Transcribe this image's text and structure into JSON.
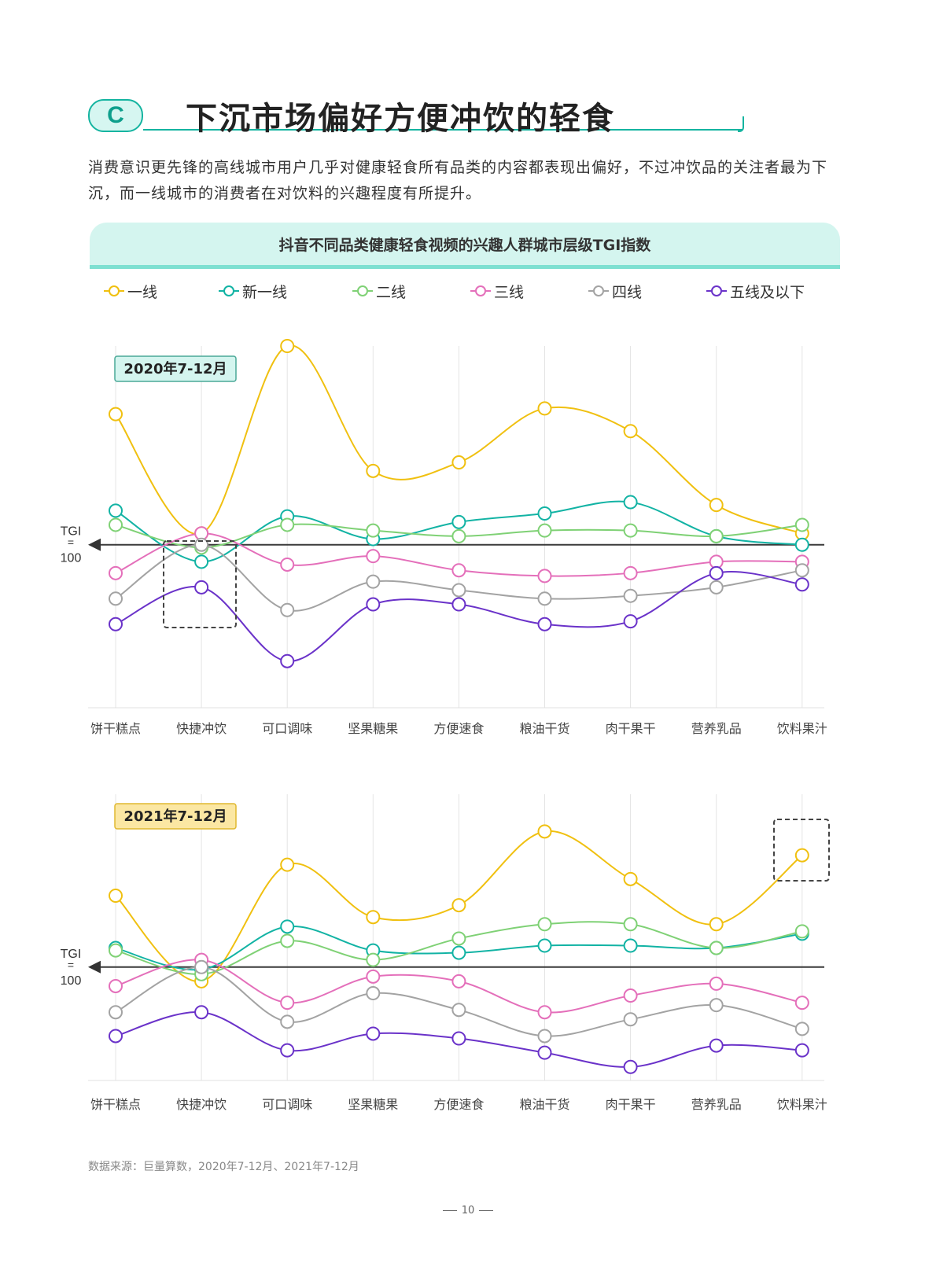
{
  "header": {
    "badge": "C",
    "title": "下沉市场偏好方便冲饮的轻食"
  },
  "intro": "消费意识更先锋的高线城市用户几乎对健康轻食所有品类的内容都表现出偏好，不过冲饮品的关注者最为下沉，而一线城市的消费者在对饮料的兴趣程度有所提升。",
  "chart_title": "抖音不同品类健康轻食视频的兴趣人群城市层级TGI指数",
  "legend": [
    {
      "name": "一线",
      "color": "#f0c010"
    },
    {
      "name": "新一线",
      "color": "#12b3a4"
    },
    {
      "name": "二线",
      "color": "#7fd175"
    },
    {
      "name": "三线",
      "color": "#e46fba"
    },
    {
      "name": "四线",
      "color": "#a3a3a3"
    },
    {
      "name": "五线及以下",
      "color": "#6a32c9"
    }
  ],
  "chart_data": [
    {
      "type": "line",
      "period": "2020年7-12月",
      "period_style": {
        "bg": "#d4f5ef",
        "border": "#4aa897"
      },
      "reference": {
        "label_top": "TGI",
        "label_mid": "=",
        "label_bottom": "100",
        "value": 100
      },
      "categories": [
        "饼干糕点",
        "快捷冲饮",
        "可口调味",
        "坚果糖果",
        "方便速食",
        "粮油干货",
        "肉干果干",
        "营养乳品",
        "饮料果汁"
      ],
      "ylim": [
        52,
        170
      ],
      "series": [
        {
          "name": "一线",
          "values": [
            146,
            104,
            170,
            126,
            129,
            148,
            140,
            114,
            104
          ]
        },
        {
          "name": "新一线",
          "values": [
            112,
            94,
            110,
            102,
            108,
            111,
            115,
            103,
            100
          ]
        },
        {
          "name": "二线",
          "values": [
            107,
            99,
            107,
            105,
            103,
            105,
            105,
            103,
            107
          ]
        },
        {
          "name": "三线",
          "values": [
            90,
            104,
            93,
            96,
            91,
            89,
            90,
            94,
            94
          ]
        },
        {
          "name": "四线",
          "values": [
            81,
            100,
            77,
            87,
            84,
            81,
            82,
            85,
            91
          ]
        },
        {
          "name": "五线及以下",
          "values": [
            72,
            85,
            59,
            79,
            79,
            72,
            73,
            90,
            86
          ]
        }
      ]
    },
    {
      "type": "line",
      "period": "2021年7-12月",
      "period_style": {
        "bg": "#fbe7a3",
        "border": "#e0b830"
      },
      "reference": {
        "label_top": "TGI",
        "label_mid": "=",
        "label_bottom": "100",
        "value": 100
      },
      "categories": [
        "饼干糕点",
        "快捷冲饮",
        "可口调味",
        "坚果糖果",
        "方便速食",
        "粮油干货",
        "肉干果干",
        "营养乳品",
        "饮料果汁"
      ],
      "ylim": [
        50,
        170
      ],
      "series": [
        {
          "name": "一线",
          "values": [
            130,
            94,
            143,
            121,
            126,
            157,
            137,
            118,
            147
          ]
        },
        {
          "name": "新一线",
          "values": [
            108,
            99,
            117,
            107,
            106,
            109,
            109,
            108,
            114
          ]
        },
        {
          "name": "二线",
          "values": [
            107,
            97,
            111,
            103,
            112,
            118,
            118,
            108,
            115
          ]
        },
        {
          "name": "三线",
          "values": [
            92,
            103,
            85,
            96,
            94,
            81,
            88,
            93,
            85
          ]
        },
        {
          "name": "四线",
          "values": [
            81,
            100,
            77,
            89,
            82,
            71,
            78,
            84,
            74
          ]
        },
        {
          "name": "五线及以下",
          "values": [
            71,
            81,
            65,
            72,
            70,
            64,
            58,
            67,
            65
          ]
        }
      ]
    }
  ],
  "source": "数据来源：巨量算数，2020年7-12月、2021年7-12月",
  "page_number": "10"
}
